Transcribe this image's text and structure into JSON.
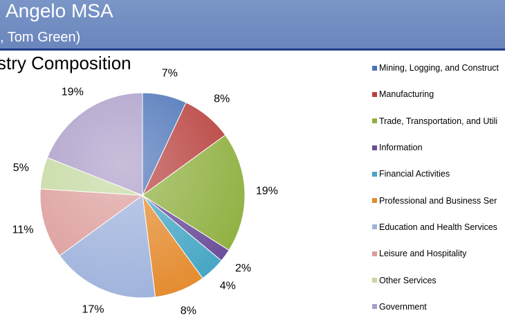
{
  "header": {
    "title": "Angelo MSA",
    "subtitle": ", Tom Green)"
  },
  "chart_data": {
    "type": "pie",
    "title": "stry Composition",
    "slices": [
      {
        "label": "Mining, Logging, and Construct",
        "value": 7,
        "value_label": "7%",
        "color": "#4a72b8"
      },
      {
        "label": "Manufacturing",
        "value": 8,
        "value_label": "8%",
        "color": "#b8403d"
      },
      {
        "label": "Trade, Transportation, and Utili",
        "value": 19,
        "value_label": "19%",
        "color": "#8fb040"
      },
      {
        "label": "Information",
        "value": 2,
        "value_label": "2%",
        "color": "#6a4c98"
      },
      {
        "label": "Financial Activities",
        "value": 4,
        "value_label": "4%",
        "color": "#45a6c4"
      },
      {
        "label": "Professional and Business Ser",
        "value": 8,
        "value_label": "8%",
        "color": "#e48b2e"
      },
      {
        "label": "Education and Health Services",
        "value": 17,
        "value_label": "17%",
        "color": "#9eb2dc"
      },
      {
        "label": "Leisure and Hospitality",
        "value": 11,
        "value_label": "11%",
        "color": "#dc9d9b"
      },
      {
        "label": "Other Services",
        "value": 5,
        "value_label": "5%",
        "color": "#c4d9a0"
      },
      {
        "label": "Government",
        "value": 19,
        "value_label": "19%",
        "color": "#ab9cc8"
      }
    ],
    "legend_position": "right"
  }
}
